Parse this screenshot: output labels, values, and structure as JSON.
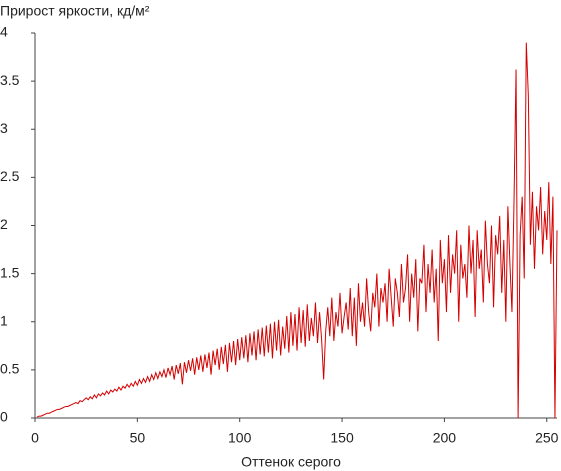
{
  "chart_data": {
    "type": "line",
    "title": "Прирост яркости, кд/м²",
    "x_label": "Оттенок серого",
    "xlim": [
      0,
      255
    ],
    "xticks": [
      0,
      50,
      100,
      150,
      200,
      250
    ],
    "ylim": [
      0,
      4
    ],
    "yticks": [
      0,
      0.5,
      1,
      1.5,
      2,
      2.5,
      3,
      3.5,
      4
    ],
    "grid": false,
    "x": [
      1,
      2,
      3,
      4,
      5,
      6,
      7,
      8,
      9,
      10,
      11,
      12,
      13,
      14,
      15,
      16,
      17,
      18,
      19,
      20,
      21,
      22,
      23,
      24,
      25,
      26,
      27,
      28,
      29,
      30,
      31,
      32,
      33,
      34,
      35,
      36,
      37,
      38,
      39,
      40,
      41,
      42,
      43,
      44,
      45,
      46,
      47,
      48,
      49,
      50,
      51,
      52,
      53,
      54,
      55,
      56,
      57,
      58,
      59,
      60,
      61,
      62,
      63,
      64,
      65,
      66,
      67,
      68,
      69,
      70,
      71,
      72,
      73,
      74,
      75,
      76,
      77,
      78,
      79,
      80,
      81,
      82,
      83,
      84,
      85,
      86,
      87,
      88,
      89,
      90,
      91,
      92,
      93,
      94,
      95,
      96,
      97,
      98,
      99,
      100,
      101,
      102,
      103,
      104,
      105,
      106,
      107,
      108,
      109,
      110,
      111,
      112,
      113,
      114,
      115,
      116,
      117,
      118,
      119,
      120,
      121,
      122,
      123,
      124,
      125,
      126,
      127,
      128,
      129,
      130,
      131,
      132,
      133,
      134,
      135,
      136,
      137,
      138,
      139,
      140,
      141,
      142,
      143,
      144,
      145,
      146,
      147,
      148,
      149,
      150,
      151,
      152,
      153,
      154,
      155,
      156,
      157,
      158,
      159,
      160,
      161,
      162,
      163,
      164,
      165,
      166,
      167,
      168,
      169,
      170,
      171,
      172,
      173,
      174,
      175,
      176,
      177,
      178,
      179,
      180,
      181,
      182,
      183,
      184,
      185,
      186,
      187,
      188,
      189,
      190,
      191,
      192,
      193,
      194,
      195,
      196,
      197,
      198,
      199,
      200,
      201,
      202,
      203,
      204,
      205,
      206,
      207,
      208,
      209,
      210,
      211,
      212,
      213,
      214,
      215,
      216,
      217,
      218,
      219,
      220,
      221,
      222,
      223,
      224,
      225,
      226,
      227,
      228,
      229,
      230,
      231,
      232,
      233,
      234,
      235,
      236,
      237,
      238,
      239,
      240,
      241,
      242,
      243,
      244,
      245,
      246,
      247,
      248,
      249,
      250,
      251,
      252,
      253,
      254,
      255
    ],
    "series": [
      {
        "color": "#d40000",
        "values": [
          0.01,
          0.02,
          0.02,
          0.03,
          0.04,
          0.05,
          0.05,
          0.06,
          0.07,
          0.08,
          0.09,
          0.09,
          0.1,
          0.11,
          0.12,
          0.12,
          0.13,
          0.14,
          0.15,
          0.16,
          0.15,
          0.18,
          0.17,
          0.19,
          0.21,
          0.19,
          0.22,
          0.2,
          0.24,
          0.21,
          0.25,
          0.23,
          0.26,
          0.24,
          0.28,
          0.25,
          0.29,
          0.27,
          0.3,
          0.28,
          0.32,
          0.29,
          0.33,
          0.31,
          0.35,
          0.32,
          0.36,
          0.33,
          0.38,
          0.34,
          0.4,
          0.36,
          0.41,
          0.37,
          0.43,
          0.38,
          0.45,
          0.4,
          0.47,
          0.41,
          0.48,
          0.43,
          0.5,
          0.42,
          0.52,
          0.45,
          0.54,
          0.4,
          0.55,
          0.46,
          0.57,
          0.35,
          0.58,
          0.47,
          0.6,
          0.49,
          0.62,
          0.45,
          0.63,
          0.5,
          0.65,
          0.48,
          0.66,
          0.52,
          0.68,
          0.45,
          0.7,
          0.55,
          0.72,
          0.5,
          0.74,
          0.56,
          0.76,
          0.48,
          0.78,
          0.58,
          0.8,
          0.55,
          0.82,
          0.6,
          0.84,
          0.62,
          0.86,
          0.58,
          0.88,
          0.65,
          0.9,
          0.6,
          0.92,
          0.66,
          0.94,
          0.64,
          0.96,
          0.68,
          0.98,
          0.62,
          1.0,
          0.7,
          1.02,
          0.65,
          0.95,
          0.72,
          1.06,
          0.68,
          1.1,
          0.75,
          1.08,
          0.7,
          1.15,
          0.78,
          1.12,
          0.74,
          1.18,
          0.8,
          1.04,
          0.85,
          1.2,
          0.78,
          1.1,
          0.82,
          0.4,
          0.9,
          1.15,
          0.85,
          1.25,
          0.8,
          1.1,
          0.95,
          1.3,
          0.88,
          1.05,
          1.2,
          0.92,
          1.35,
          0.85,
          1.25,
          0.75,
          1.4,
          1.0,
          1.2,
          0.95,
          1.45,
          1.1,
          0.9,
          1.3,
          1.15,
          1.5,
          0.95,
          1.35,
          1.2,
          1.4,
          1.0,
          1.55,
          1.25,
          0.95,
          1.45,
          1.3,
          1.05,
          1.6,
          1.2,
          1.35,
          1.7,
          1.0,
          1.5,
          1.25,
          1.65,
          0.9,
          1.45,
          1.4,
          1.8,
          1.1,
          1.6,
          1.3,
          1.75,
          1.2,
          1.55,
          0.8,
          1.85,
          1.4,
          1.65,
          1.1,
          1.9,
          1.3,
          1.7,
          1.5,
          1.95,
          1.0,
          1.8,
          1.45,
          1.6,
          1.25,
          2.0,
          1.5,
          1.85,
          1.05,
          1.95,
          1.55,
          1.75,
          1.2,
          2.05,
          1.6,
          1.4,
          2.0,
          1.15,
          1.9,
          1.7,
          2.1,
          1.3,
          1.85,
          1.0,
          2.2,
          1.6,
          1.1,
          2.25,
          3.62,
          0.0,
          1.9,
          2.3,
          1.45,
          3.9,
          3.35,
          1.8,
          2.35,
          1.55,
          2.2,
          1.95,
          2.4,
          1.7,
          2.15,
          1.85,
          2.45,
          1.6,
          2.3,
          0.0,
          1.95
        ]
      }
    ]
  }
}
